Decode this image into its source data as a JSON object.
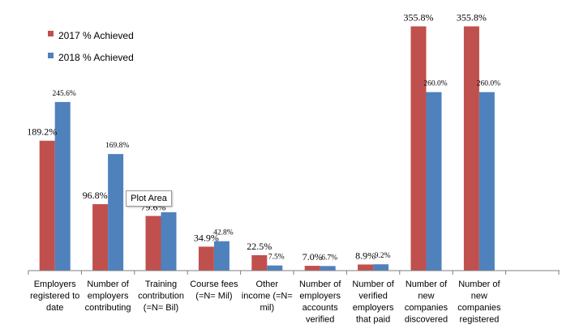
{
  "chart_data": {
    "type": "bar",
    "categories": [
      [
        "Employers",
        "registered to",
        "date"
      ],
      [
        "Number of",
        "employers",
        "contributing"
      ],
      [
        "Training",
        "contribution",
        "(=N= Bil)"
      ],
      [
        "Course fees",
        "(=N= Mil)"
      ],
      [
        "Other",
        "income (=N=",
        "mil)"
      ],
      [
        "Number of",
        "employers",
        "accounts",
        "verified"
      ],
      [
        "Number of",
        "verified",
        "employers",
        "that paid"
      ],
      [
        "Number of",
        "new",
        "companies",
        "discovered"
      ],
      [
        "Number of",
        "new",
        "companies",
        "registered"
      ]
    ],
    "series": [
      {
        "name": "2017 % Achieved",
        "color": "#c0504d",
        "values": [
          189.2,
          96.8,
          79.6,
          34.9,
          22.5,
          7.0,
          8.9,
          355.8,
          355.8
        ],
        "labels": [
          "189.2%",
          "96.8%",
          "79.6%",
          "34.9%",
          "22.5%",
          "7.0%",
          "8.9%",
          "355.8%",
          "355.8%"
        ]
      },
      {
        "name": "2018 % Achieved",
        "color": "#4f81bd",
        "values": [
          245.6,
          169.8,
          85.0,
          42.8,
          7.5,
          6.7,
          9.2,
          260.0,
          260.0
        ],
        "labels": [
          "245.6%",
          "169.8%",
          "",
          "42.8%",
          "7.5%",
          "6.7%",
          "9.2%",
          "260.0%",
          "260.0%"
        ]
      }
    ],
    "ylim": [
      0,
      360
    ],
    "grid": false,
    "legend_position": "top-left"
  },
  "tooltip": {
    "text": "Plot Area"
  }
}
